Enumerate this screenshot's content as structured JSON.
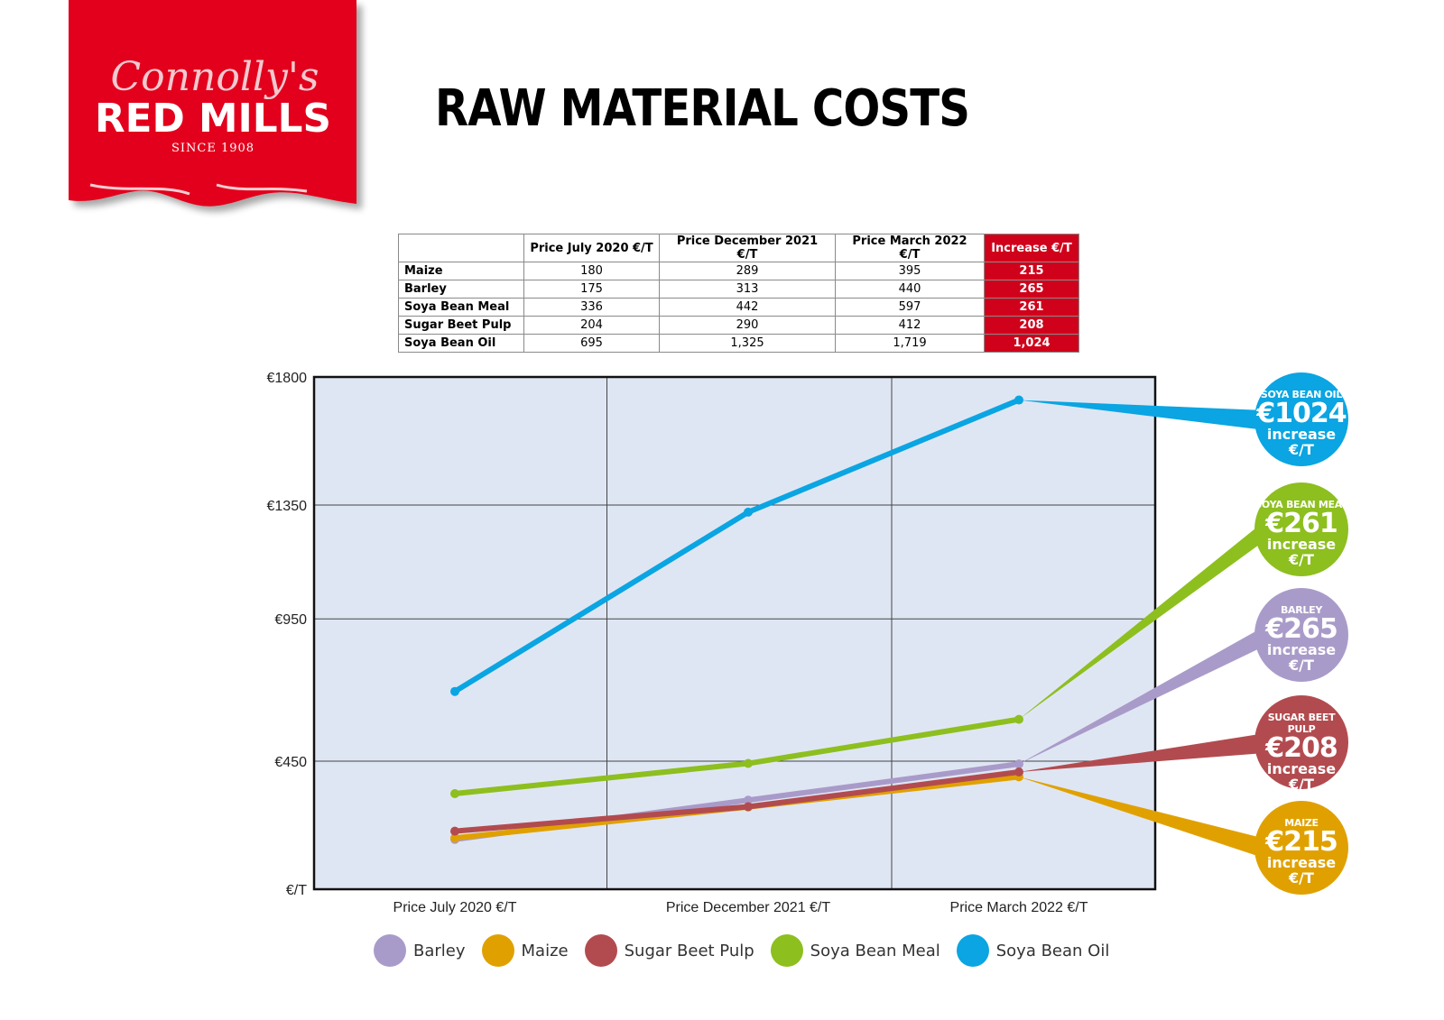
{
  "logo": {
    "script_text": "Connolly's",
    "brand": "RED MILLS",
    "since": "SINCE 1908",
    "color": "#e2001a"
  },
  "title": "RAW MATERIAL COSTS",
  "table": {
    "headers": [
      "",
      "Price July 2020 €/T",
      "Price December 2021 €/T",
      "Price March 2022 €/T",
      "Increase €/T"
    ],
    "rows": [
      {
        "name": "Maize",
        "jul2020": "180",
        "dec2021": "289",
        "mar2022": "395",
        "increase": "215"
      },
      {
        "name": "Barley",
        "jul2020": "175",
        "dec2021": "313",
        "mar2022": "440",
        "increase": "265"
      },
      {
        "name": "Soya Bean Meal",
        "jul2020": "336",
        "dec2021": "442",
        "mar2022": "597",
        "increase": "261"
      },
      {
        "name": "Sugar Beet Pulp",
        "jul2020": "204",
        "dec2021": "290",
        "mar2022": "412",
        "increase": "208"
      },
      {
        "name": "Soya Bean Oil",
        "jul2020": "695",
        "dec2021": "1,325",
        "mar2022": "1,719",
        "increase": "1,024"
      }
    ]
  },
  "chart_data": {
    "type": "line",
    "title": "RAW MATERIAL COSTS",
    "x": [
      "Price July 2020 €/T",
      "Price December 2021 €/T",
      "Price March 2022 €/T"
    ],
    "y_ticks": [
      {
        "value": 0,
        "label": "€/T"
      },
      {
        "value": 450,
        "label": "€450"
      },
      {
        "value": 950,
        "label": "€950"
      },
      {
        "value": 1350,
        "label": "€1350"
      },
      {
        "value": 1800,
        "label": "€1800"
      }
    ],
    "ylim": [
      0,
      1800
    ],
    "grid": true,
    "legend_position": "bottom",
    "series": [
      {
        "name": "Barley",
        "values": [
          175,
          313,
          440
        ],
        "color": "#a99bc9"
      },
      {
        "name": "Maize",
        "values": [
          180,
          289,
          395
        ],
        "color": "#e0a100"
      },
      {
        "name": "Sugar Beet Pulp",
        "values": [
          204,
          290,
          412
        ],
        "color": "#b24b4f"
      },
      {
        "name": "Soya Bean Meal",
        "values": [
          336,
          442,
          597
        ],
        "color": "#8dbf1f"
      },
      {
        "name": "Soya Bean Oil",
        "values": [
          695,
          1325,
          1719
        ],
        "color": "#0aa5e2"
      }
    ],
    "callouts": [
      {
        "series": "Soya Bean Oil",
        "label": "SOYA BEAN OIL",
        "value": "€1024",
        "line1": "increase",
        "line2": "€/T",
        "color": "#0aa5e2"
      },
      {
        "series": "Soya Bean Meal",
        "label": "SOYA BEAN MEAL",
        "value": "€261",
        "line1": "increase",
        "line2": "€/T",
        "color": "#8dbf1f"
      },
      {
        "series": "Barley",
        "label": "BARLEY",
        "value": "€265",
        "line1": "increase",
        "line2": "€/T",
        "color": "#a99bc9"
      },
      {
        "series": "Sugar Beet Pulp",
        "label": "SUGAR BEET PULP",
        "value": "€208",
        "line1": "increase",
        "line2": "€/T",
        "color": "#b24b4f"
      },
      {
        "series": "Maize",
        "label": "MAIZE",
        "value": "€215",
        "line1": "increase",
        "line2": "€/T",
        "color": "#e0a100"
      }
    ]
  }
}
